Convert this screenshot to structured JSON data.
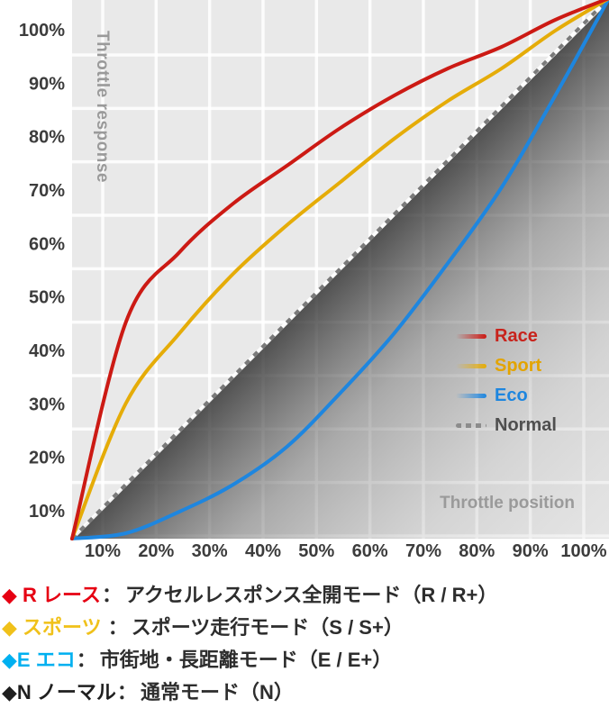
{
  "chart_data": {
    "type": "line",
    "title": "",
    "xlabel": "Throttle position",
    "ylabel": "Throttle response",
    "xlim": [
      0,
      100
    ],
    "ylim": [
      0,
      100
    ],
    "grid": true,
    "legend_position": "right-middle",
    "x": [
      0,
      10,
      20,
      30,
      40,
      50,
      60,
      70,
      80,
      90,
      100
    ],
    "x_tick_labels": [
      "10%",
      "20%",
      "30%",
      "40%",
      "50%",
      "60%",
      "70%",
      "80%",
      "90%",
      "100%"
    ],
    "y_tick_labels": [
      "100%",
      "90%",
      "80%",
      "70%",
      "60%",
      "50%",
      "40%",
      "30%",
      "20%",
      "10%"
    ],
    "series": [
      {
        "name": "Race",
        "color": "#cc1a14",
        "style": "solid",
        "values": [
          0,
          40,
          53,
          62,
          69,
          76,
          82,
          87,
          91,
          96,
          100
        ]
      },
      {
        "name": "Sport",
        "color": "#e5ac08",
        "style": "solid",
        "values": [
          0,
          25,
          38,
          49,
          58,
          66,
          74,
          81,
          87,
          94,
          100
        ]
      },
      {
        "name": "Eco",
        "color": "#1e86df",
        "style": "solid",
        "values": [
          0,
          1,
          5,
          10,
          17,
          27,
          38,
          51,
          65,
          82,
          100
        ]
      },
      {
        "name": "Normal",
        "color": "#7a7a7a",
        "style": "dotted",
        "values": [
          0,
          10,
          20,
          30,
          40,
          50,
          60,
          70,
          80,
          90,
          100
        ]
      }
    ],
    "legend_text_colors": [
      "#c8231c",
      "#e3a400",
      "#1e86df",
      "#4f4f4f"
    ],
    "colors": {
      "plot_background": "#e9e9e9",
      "gridline": "#ffffff",
      "tick_label": "#3c3c3c",
      "axis_label": "#9a9a9a",
      "shadow_dark": "#303030",
      "shadow_light": "#c9c9c9"
    }
  },
  "modes": {
    "colon": "：",
    "items": [
      {
        "label": "◆ R レース",
        "color": "#e60012",
        "desc": "アクセルレスポンス全開モード（R / R+）"
      },
      {
        "label": "◆ スポーツ ",
        "color": "#f0c11a",
        "desc": "スポーツ走行モード（S / S+）"
      },
      {
        "label": "◆E エコ",
        "color": "#00b0f0",
        "desc": "市街地・長距離モード（E / E+）"
      },
      {
        "label": "◆N ノーマル",
        "color": "#1f1f1f",
        "desc": "通常モード（N）"
      }
    ]
  }
}
